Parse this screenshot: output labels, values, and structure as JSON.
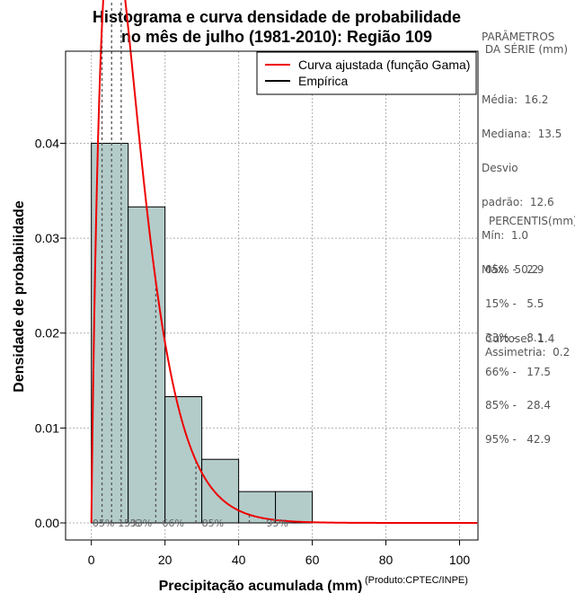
{
  "chart_data": {
    "type": "histogram",
    "title_line1": "Histograma e curva densidade de probabilidade",
    "title_line2": "no mês de julho (1981-2010): Região 109",
    "xlabel": "Precipitação acumulada (mm)",
    "ylabel": "Densidade de probabilidade",
    "xlim": [
      -7,
      105
    ],
    "ylim": [
      -0.0018,
      0.0497
    ],
    "xticks": [
      0,
      20,
      40,
      60,
      80,
      100
    ],
    "yticks": [
      0.0,
      0.01,
      0.02,
      0.03,
      0.04
    ],
    "ytick_labels": [
      "0.00",
      "0.01",
      "0.02",
      "0.03",
      "0.04"
    ],
    "bins": [
      {
        "from": 0,
        "to": 10,
        "density": 0.04
      },
      {
        "from": 10,
        "to": 20,
        "density": 0.0333
      },
      {
        "from": 20,
        "to": 30,
        "density": 0.0133
      },
      {
        "from": 30,
        "to": 40,
        "density": 0.0067
      },
      {
        "from": 40,
        "to": 50,
        "density": 0.0033
      },
      {
        "from": 50,
        "to": 60,
        "density": 0.0033
      }
    ],
    "bar_fill": "#b3ccca",
    "curve_color": "#ee0000",
    "gamma_fit": {
      "shape": 1.95,
      "scale": 6.0
    },
    "curve_xmax": 105,
    "percentile_lines": [
      2.9,
      5.5,
      8.1,
      17.5,
      28.4,
      42.9
    ],
    "percentile_labels": [
      {
        "text": "05%",
        "x": 0.3
      },
      {
        "text": "15%",
        "x": 7.2
      },
      {
        "text": "33%",
        "x": 10.5
      },
      {
        "text": "66%",
        "x": 19.2
      },
      {
        "text": "85%",
        "x": 30.0
      },
      {
        "text": "95%",
        "x": 47.5
      }
    ],
    "legend": [
      {
        "label": "Curva ajustada (função Gama)",
        "color": "#ee0000"
      },
      {
        "label": "Empírica",
        "color": "#000000"
      }
    ],
    "legend_position": "top-right"
  },
  "side_panel": {
    "params_title_1": "PARÂMETROS",
    "params_title_2": " DA SÉRIE (mm)",
    "params": [
      "Média:  16.2",
      "Mediana:  13.5",
      "Desvio",
      "padrão:  12.6",
      "Mín:  1.0",
      "Máx:  50.2"
    ],
    "percentis_title": "PERCENTIS(mm)",
    "percentis": [
      "05% -   2.9",
      "15% -   5.5",
      "33% -   8.1",
      "66% -   17.5",
      "85% -   28.4",
      "95% -   42.9"
    ],
    "curtose": "Curtose:  1.4",
    "assimetria": "Assimetria:  0.2"
  },
  "credit": "(Produto:CPTEC/INPE)"
}
